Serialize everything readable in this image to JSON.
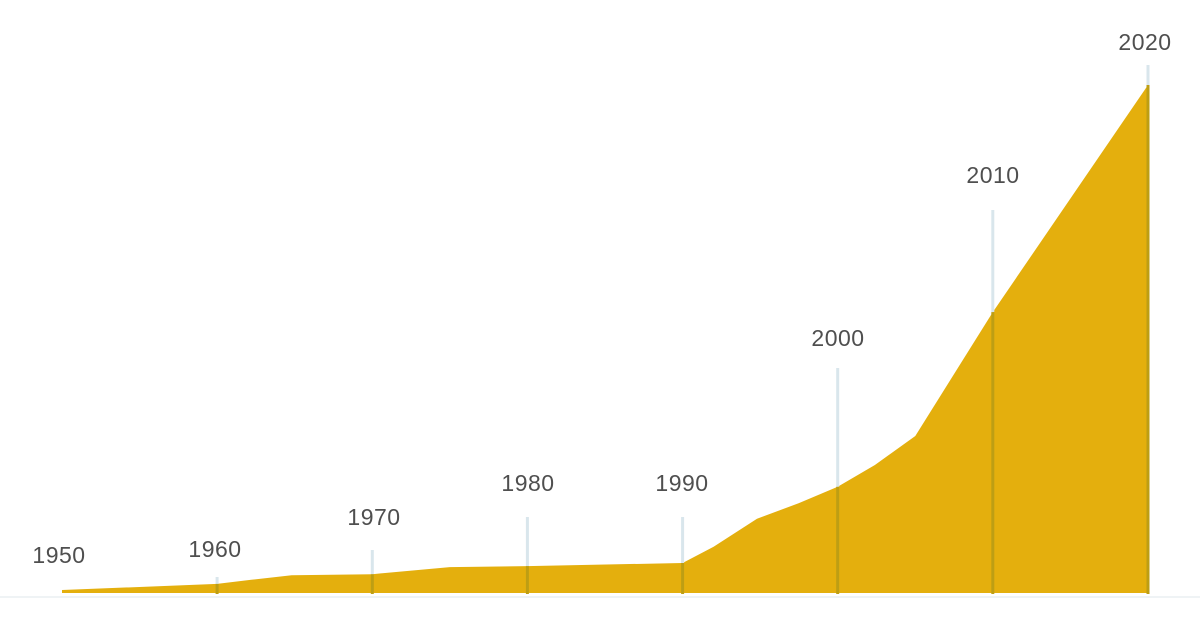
{
  "chart_data": {
    "type": "area",
    "title": "",
    "xlabel": "",
    "ylabel": "",
    "categories": [
      "1950",
      "1960",
      "1970",
      "1980",
      "1990",
      "2000",
      "2010",
      "2020"
    ],
    "values_at_decades": [
      0.6,
      1.8,
      3.7,
      5.3,
      5.9,
      20.9,
      55.3,
      100
    ],
    "value_units": "relative scale, 2020 peak = 100 (no numeric axis shown)",
    "series_points": [
      {
        "x": 1950.0,
        "v": 0.6
      },
      {
        "x": 1960.0,
        "v": 1.8
      },
      {
        "x": 1962.2,
        "v": 2.6
      },
      {
        "x": 1964.8,
        "v": 3.5
      },
      {
        "x": 1970.0,
        "v": 3.7
      },
      {
        "x": 1975.0,
        "v": 5.1
      },
      {
        "x": 1980.0,
        "v": 5.3
      },
      {
        "x": 1990.0,
        "v": 5.9
      },
      {
        "x": 1992.0,
        "v": 9.1
      },
      {
        "x": 1994.8,
        "v": 14.6
      },
      {
        "x": 1997.5,
        "v": 17.7
      },
      {
        "x": 2000.0,
        "v": 20.9
      },
      {
        "x": 2002.4,
        "v": 25.2
      },
      {
        "x": 2005.0,
        "v": 30.9
      },
      {
        "x": 2010.0,
        "v": 55.3
      },
      {
        "x": 2020.0,
        "v": 100
      }
    ],
    "axis": {
      "x_range": [
        1950,
        2020
      ],
      "y_range": [
        0,
        100
      ],
      "grid": false,
      "legend": "none",
      "y_axis_labels_shown": false
    },
    "colors": {
      "area": "#E4AF0D",
      "tick_light": "#D9E6EC",
      "tick_dark": "#BD9E14",
      "baseline": "#EFF3F5",
      "label_text": "#4F4F4F"
    }
  }
}
